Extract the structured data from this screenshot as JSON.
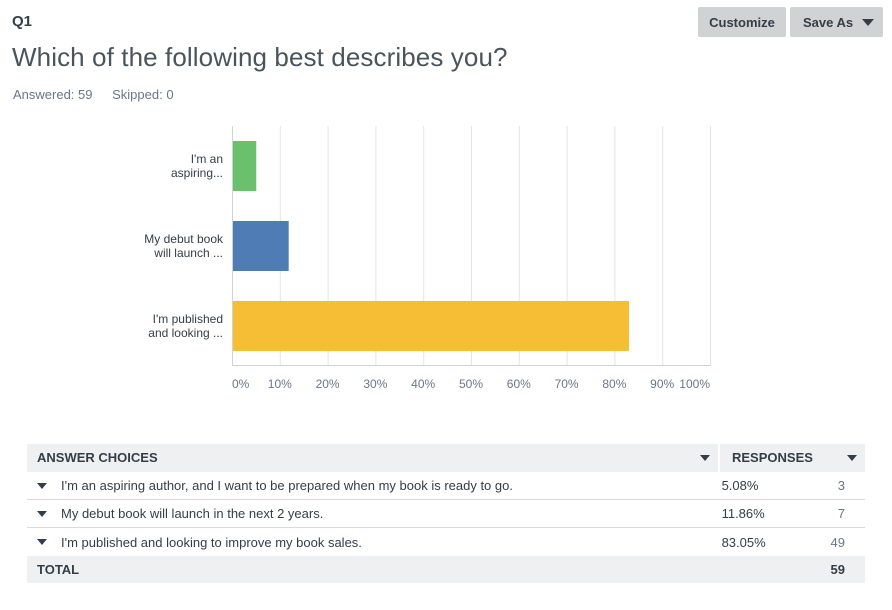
{
  "question": {
    "number": "Q1",
    "title": "Which of the following best describes you?",
    "answered_label": "Answered: 59",
    "skipped_label": "Skipped: 0"
  },
  "toolbar": {
    "customize_label": "Customize",
    "save_as_label": "Save As"
  },
  "chart_data": {
    "type": "bar",
    "orientation": "horizontal",
    "categories": [
      "I'm an aspiring...",
      "My debut book will launch ...",
      "I'm published and looking ..."
    ],
    "category_lines": [
      [
        "I'm an",
        "aspiring..."
      ],
      [
        "My debut book",
        "will launch ..."
      ],
      [
        "I'm published",
        "and looking ..."
      ]
    ],
    "values": [
      5.08,
      11.86,
      83.05
    ],
    "colors": [
      "#6bc06d",
      "#507cb6",
      "#f6be35"
    ],
    "xlim": [
      0,
      100
    ],
    "xticks": [
      "0%",
      "10%",
      "20%",
      "30%",
      "40%",
      "50%",
      "60%",
      "70%",
      "80%",
      "90%",
      "100%"
    ],
    "grid": true,
    "title": "",
    "xlabel": "",
    "ylabel": ""
  },
  "table": {
    "header_choices": "ANSWER CHOICES",
    "header_responses": "RESPONSES",
    "rows": [
      {
        "choice": "I'm an aspiring author, and I want to be prepared when my book is ready to go.",
        "percent": "5.08%",
        "count": "3"
      },
      {
        "choice": "My debut book will launch in the next 2 years.",
        "percent": "11.86%",
        "count": "7"
      },
      {
        "choice": "I'm published and looking to improve my book sales.",
        "percent": "83.05%",
        "count": "49"
      }
    ],
    "total_label": "TOTAL",
    "total_value": "59"
  }
}
